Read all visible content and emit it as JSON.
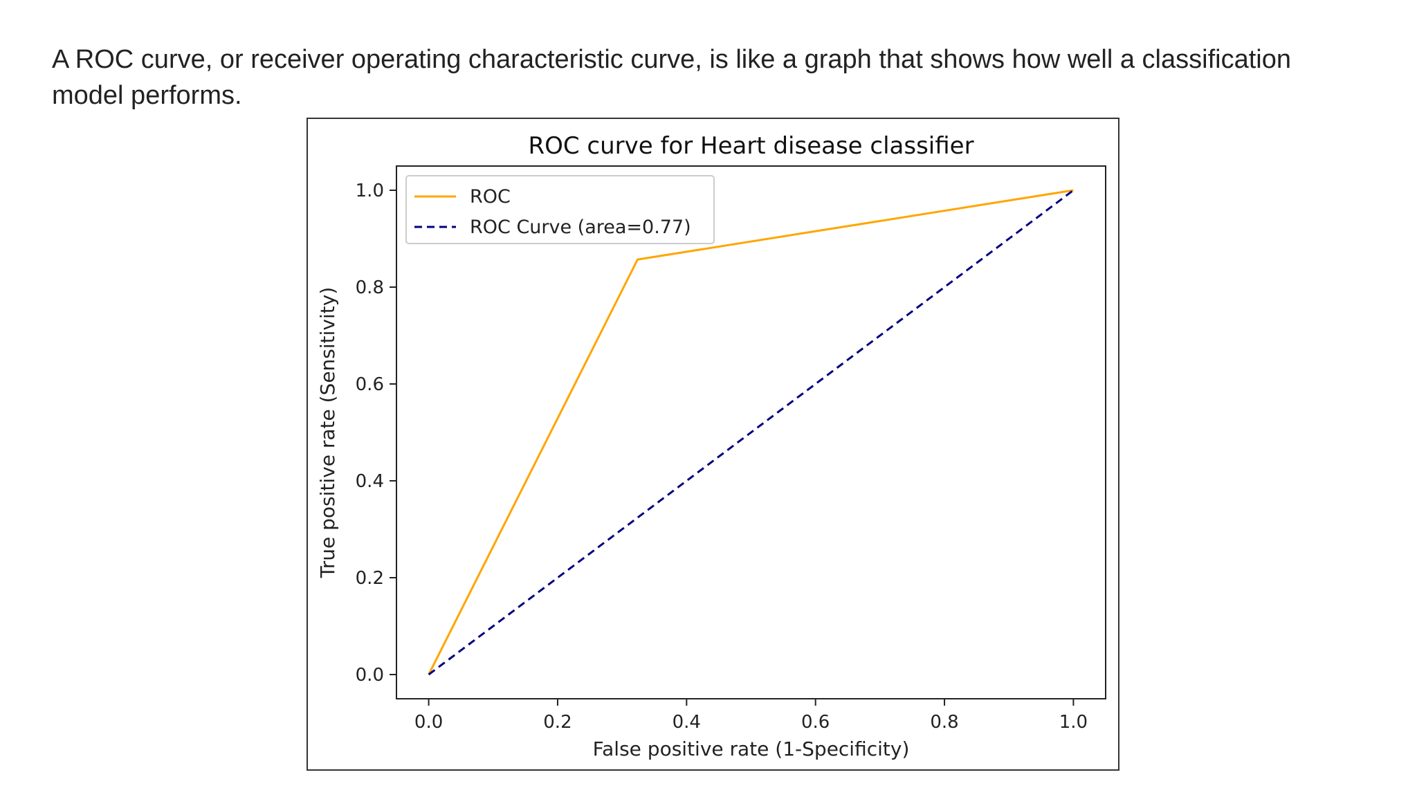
{
  "intro": {
    "text": "A ROC curve, or receiver operating characteristic curve, is like a graph that shows how well a classification model performs."
  },
  "chart_data": {
    "type": "line",
    "title": "ROC curve for Heart disease classifier",
    "xlabel": "False positive rate (1-Specificity)",
    "ylabel": "True positive rate (Sensitivity)",
    "xlim": [
      -0.05,
      1.05
    ],
    "ylim": [
      -0.05,
      1.05
    ],
    "xticks": [
      0.0,
      0.2,
      0.4,
      0.6,
      0.8,
      1.0
    ],
    "yticks": [
      0.0,
      0.2,
      0.4,
      0.6,
      0.8,
      1.0
    ],
    "tick_format": [
      "0.0",
      "0.2",
      "0.4",
      "0.6",
      "0.8",
      "1.0"
    ],
    "grid": false,
    "legend": "top-left",
    "series": [
      {
        "name": "ROC",
        "style": "solid",
        "color": "#FFA500",
        "x": [
          0.0,
          0.324,
          1.0
        ],
        "y": [
          0.0,
          0.857,
          1.0
        ]
      },
      {
        "name": "ROC Curve (area=0.77)",
        "style": "dashed",
        "color": "#000080",
        "x": [
          0.0,
          1.0
        ],
        "y": [
          0.0,
          1.0
        ]
      }
    ]
  }
}
